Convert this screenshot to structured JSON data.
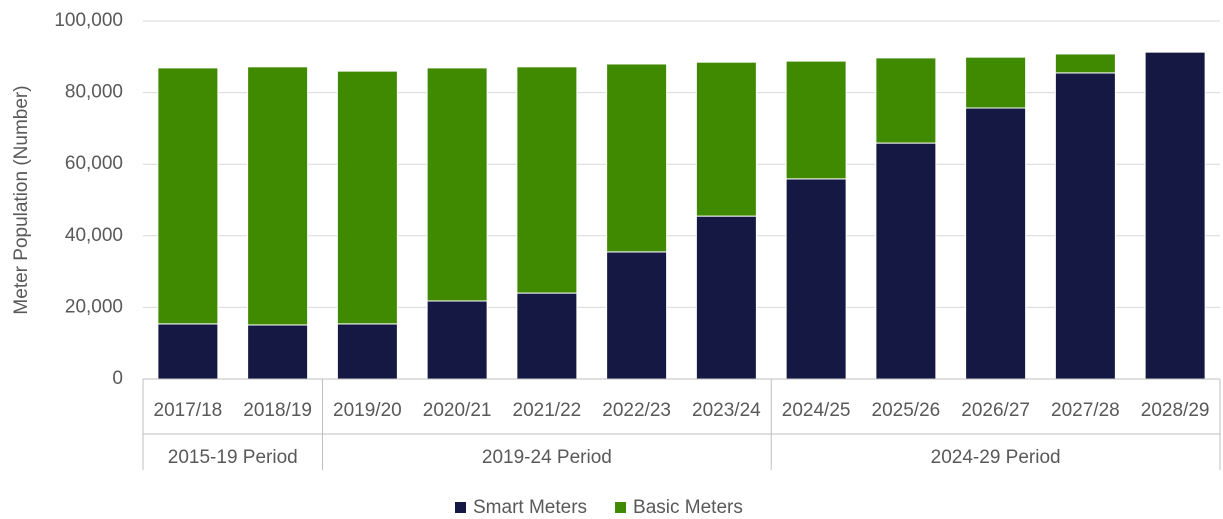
{
  "chart_data": {
    "type": "stacked_bar",
    "y_label": "Meter Population (Number)",
    "categories": [
      "2017/18",
      "2018/19",
      "2019/20",
      "2020/21",
      "2021/22",
      "2022/23",
      "2023/24",
      "2024/25",
      "2025/26",
      "2026/27",
      "2027/28",
      "2028/29"
    ],
    "groups": [
      {
        "label": "2015-19 Period",
        "span": 2
      },
      {
        "label": "2019-24 Period",
        "span": 5
      },
      {
        "label": "2024-29 Period",
        "span": 5
      }
    ],
    "series": [
      {
        "name": "Smart Meters",
        "color": "#141842",
        "values": [
          15400,
          15100,
          15400,
          21800,
          24000,
          35500,
          45500,
          55900,
          65900,
          75700,
          85500,
          91300
        ]
      },
      {
        "name": "Basic Meters",
        "color": "#3f8a00",
        "values": [
          71500,
          72100,
          70600,
          65100,
          63200,
          52500,
          43000,
          32900,
          23800,
          14200,
          5300,
          0
        ]
      }
    ],
    "ylim": [
      0,
      100000
    ],
    "yticks": [
      0,
      {
        "value": 20000,
        "label": "20,000"
      },
      {
        "value": 40000,
        "label": "40,000"
      },
      {
        "value": 60000,
        "label": "60,000"
      },
      {
        "value": 80000,
        "label": "80,000"
      },
      {
        "value": 100000,
        "label": "100,000"
      }
    ],
    "grid": true,
    "legend": "bottom"
  }
}
